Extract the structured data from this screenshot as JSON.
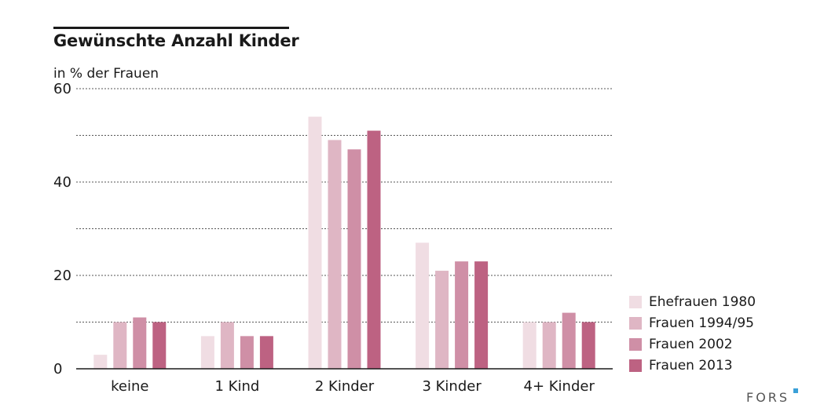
{
  "chart_data": {
    "type": "bar",
    "title": "Gewünschte Anzahl Kinder",
    "ylabel": "in % der Frauen",
    "xlabel": "",
    "categories": [
      "keine",
      "1 Kind",
      "2 Kinder",
      "3 Kinder",
      "4+ Kinder"
    ],
    "series": [
      {
        "name": "Ehefrauen 1980",
        "color": "#f0dde3",
        "values": [
          3,
          7,
          54,
          27,
          10
        ]
      },
      {
        "name": "Frauen 1994/95",
        "color": "#dfb6c4",
        "values": [
          10,
          10,
          49,
          21,
          10
        ]
      },
      {
        "name": "Frauen 2002",
        "color": "#cf8fa6",
        "values": [
          11,
          7,
          47,
          23,
          12
        ]
      },
      {
        "name": "Frauen 2013",
        "color": "#bd6282",
        "values": [
          10,
          7,
          51,
          23,
          10
        ]
      }
    ],
    "ylim": [
      0,
      60
    ],
    "yticks": [
      0,
      20,
      40,
      60
    ],
    "gridlines": [
      10,
      20,
      30,
      40,
      50,
      60
    ],
    "grid": true,
    "legend_position": "bottom-right"
  },
  "branding": {
    "logo_text": "FORS",
    "logo_dot_color": "#3aa0d8"
  }
}
